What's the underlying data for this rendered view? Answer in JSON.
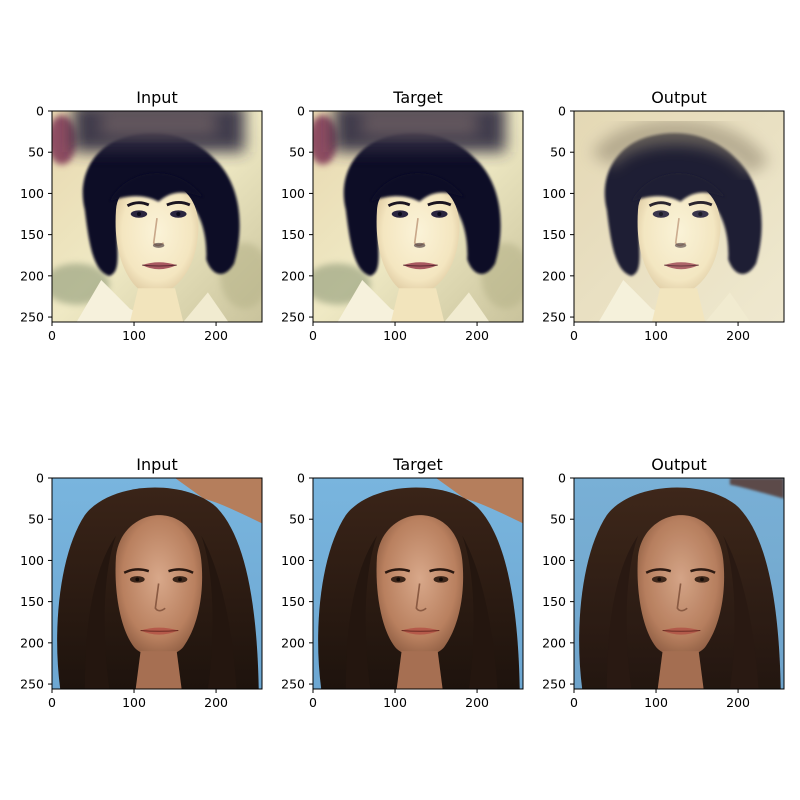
{
  "figure": {
    "panels": [
      {
        "title": "Input",
        "subject": "woman-dark-bob-hair",
        "variant": "blurred-top",
        "ticks_x": [
          "0",
          "100",
          "200"
        ],
        "ticks_y": [
          "0",
          "50",
          "100",
          "150",
          "200",
          "250"
        ]
      },
      {
        "title": "Target",
        "subject": "woman-dark-bob-hair",
        "variant": "blurred-top",
        "ticks_x": [
          "0",
          "100",
          "200"
        ],
        "ticks_y": [
          "0",
          "50",
          "100",
          "150",
          "200",
          "250"
        ]
      },
      {
        "title": "Output",
        "subject": "woman-dark-bob-hair",
        "variant": "reconstructed",
        "ticks_x": [
          "0",
          "100",
          "200"
        ],
        "ticks_y": [
          "0",
          "50",
          "100",
          "150",
          "200",
          "250"
        ]
      },
      {
        "title": "Input",
        "subject": "woman-long-brown-hair",
        "variant": "original",
        "ticks_x": [
          "0",
          "100",
          "200"
        ],
        "ticks_y": [
          "0",
          "50",
          "100",
          "150",
          "200",
          "250"
        ]
      },
      {
        "title": "Target",
        "subject": "woman-long-brown-hair",
        "variant": "original",
        "ticks_x": [
          "0",
          "100",
          "200"
        ],
        "ticks_y": [
          "0",
          "50",
          "100",
          "150",
          "200",
          "250"
        ]
      },
      {
        "title": "Output",
        "subject": "woman-long-brown-hair",
        "variant": "reconstructed",
        "ticks_x": [
          "0",
          "100",
          "200"
        ],
        "ticks_y": [
          "0",
          "50",
          "100",
          "150",
          "200",
          "250"
        ]
      }
    ],
    "axis_range": {
      "x": [
        0,
        256
      ],
      "y": [
        0,
        256
      ]
    },
    "colors": {
      "background_row1": "#ece7bf",
      "hair_row1": "#0d0d26",
      "skin_row1": "#f7eccc",
      "sky_row2": "#7ab3dd",
      "hair_row2": "#2a1a12",
      "skin_row2": "#c48f70"
    }
  }
}
